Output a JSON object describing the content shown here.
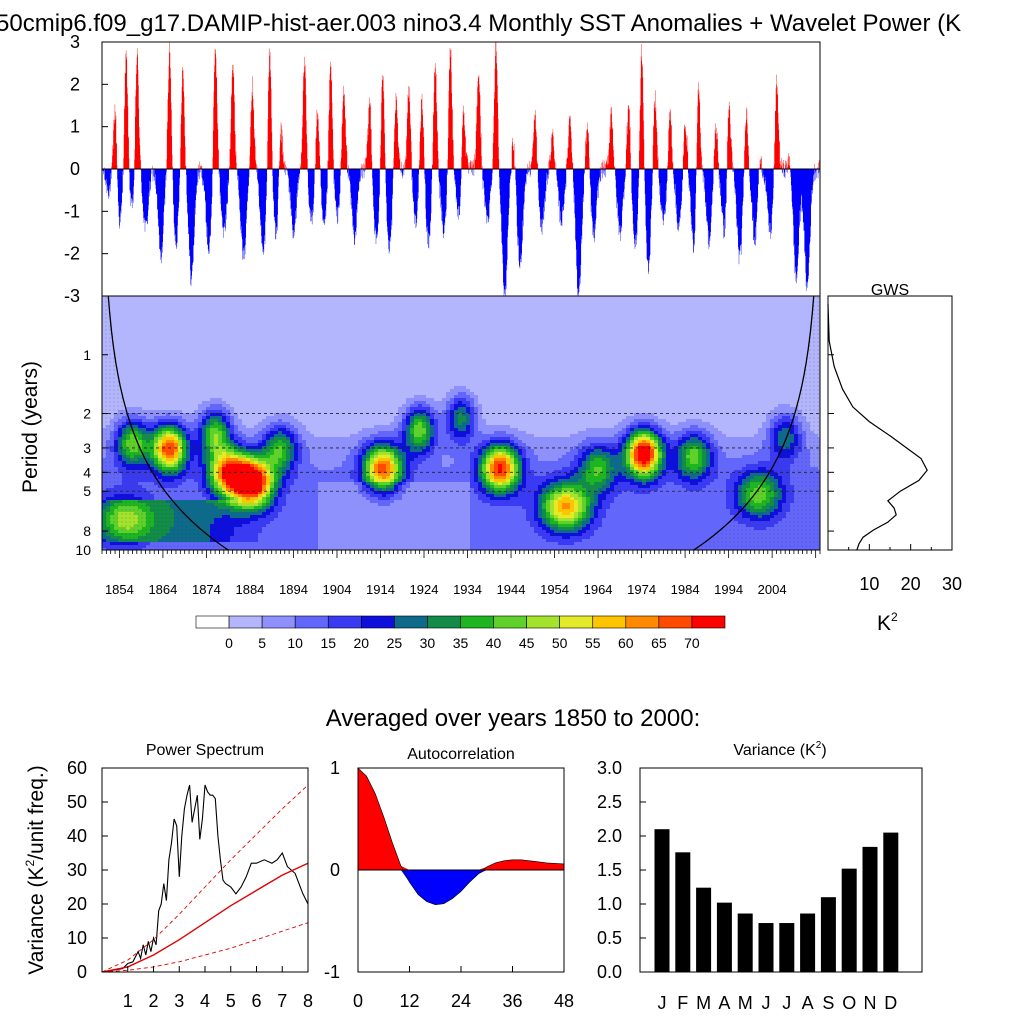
{
  "main_title": "50cmip6.f09_g17.DAMIP-hist-aer.003 nino3.4 Monthly SST Anomalies + Wavelet Power (K",
  "chart_data": [
    {
      "type": "bar",
      "name": "timeseries",
      "ylim": [
        -3,
        3
      ],
      "yticks": [
        "3",
        "2",
        "1",
        "0",
        "-1",
        "-2",
        "-3"
      ],
      "xlim": [
        1850,
        2015
      ],
      "colors": {
        "positive": "#ff0000",
        "negative": "#0000ff"
      },
      "approx_events": [
        {
          "year": 1853,
          "value": 1.8
        },
        {
          "year": 1855.5,
          "value": 2.8
        },
        {
          "year": 1858,
          "value": 3.0
        },
        {
          "year": 1865.5,
          "value": 2.9
        },
        {
          "year": 1868.5,
          "value": 2.5
        },
        {
          "year": 1876,
          "value": 3.0
        },
        {
          "year": 1880,
          "value": 2.5
        },
        {
          "year": 1884.5,
          "value": 2.0
        },
        {
          "year": 1888.5,
          "value": 3.0
        },
        {
          "year": 1891,
          "value": 1.3
        },
        {
          "year": 1896.5,
          "value": 2.6
        },
        {
          "year": 1899.5,
          "value": 1.5
        },
        {
          "year": 1902.5,
          "value": 2.6
        },
        {
          "year": 1905.5,
          "value": 1.9
        },
        {
          "year": 1911.5,
          "value": 1.7
        },
        {
          "year": 1914.5,
          "value": 2.5
        },
        {
          "year": 1917.5,
          "value": 1.7
        },
        {
          "year": 1920.5,
          "value": 2.0
        },
        {
          "year": 1923.5,
          "value": 1.8
        },
        {
          "year": 1926.5,
          "value": 2.6
        },
        {
          "year": 1930,
          "value": 3.0
        },
        {
          "year": 1933,
          "value": 1.7
        },
        {
          "year": 1936.5,
          "value": 2.3
        },
        {
          "year": 1940.5,
          "value": 3.0
        },
        {
          "year": 1944.5,
          "value": 0.7
        },
        {
          "year": 1949.5,
          "value": 1.3
        },
        {
          "year": 1953.5,
          "value": 0.8
        },
        {
          "year": 1957.5,
          "value": 1.3
        },
        {
          "year": 1961.5,
          "value": 1.1
        },
        {
          "year": 1967,
          "value": 1.4
        },
        {
          "year": 1971,
          "value": 1.6
        },
        {
          "year": 1974,
          "value": 3.0
        },
        {
          "year": 1977,
          "value": 1.8
        },
        {
          "year": 1980.5,
          "value": 1.4
        },
        {
          "year": 1984,
          "value": 1.2
        },
        {
          "year": 1987,
          "value": 2.4
        },
        {
          "year": 1991,
          "value": 1.1
        },
        {
          "year": 1994,
          "value": 1.9
        },
        {
          "year": 1998,
          "value": 1.5
        },
        {
          "year": 2001,
          "value": 0.5
        },
        {
          "year": 2005,
          "value": 2.1
        },
        {
          "year": 2008,
          "value": 0.3
        },
        {
          "year": 1851.5,
          "value": -0.5
        },
        {
          "year": 1854,
          "value": -1.3
        },
        {
          "year": 1857,
          "value": -1.0
        },
        {
          "year": 1860,
          "value": -1.4
        },
        {
          "year": 1863.5,
          "value": -2.1
        },
        {
          "year": 1867,
          "value": -1.7
        },
        {
          "year": 1870.5,
          "value": -2.6
        },
        {
          "year": 1874.5,
          "value": -1.9
        },
        {
          "year": 1878,
          "value": -1.5
        },
        {
          "year": 1882.5,
          "value": -2.1
        },
        {
          "year": 1887,
          "value": -2.0
        },
        {
          "year": 1890,
          "value": -1.6
        },
        {
          "year": 1894,
          "value": -1.5
        },
        {
          "year": 1898,
          "value": -1.2
        },
        {
          "year": 1901,
          "value": -1.4
        },
        {
          "year": 1904,
          "value": -1.1
        },
        {
          "year": 1908,
          "value": -1.6
        },
        {
          "year": 1913,
          "value": -1.7
        },
        {
          "year": 1916,
          "value": -1.9
        },
        {
          "year": 1922,
          "value": -1.2
        },
        {
          "year": 1925,
          "value": -1.7
        },
        {
          "year": 1928.5,
          "value": -1.5
        },
        {
          "year": 1932,
          "value": -1.1
        },
        {
          "year": 1938.5,
          "value": -1.2
        },
        {
          "year": 1942.5,
          "value": -3.0
        },
        {
          "year": 1946,
          "value": -2.3
        },
        {
          "year": 1951,
          "value": -1.4
        },
        {
          "year": 1955.5,
          "value": -1.2
        },
        {
          "year": 1959.5,
          "value": -3.0
        },
        {
          "year": 1963,
          "value": -1.6
        },
        {
          "year": 1969,
          "value": -1.5
        },
        {
          "year": 1972.5,
          "value": -1.8
        },
        {
          "year": 1975.5,
          "value": -2.3
        },
        {
          "year": 1979,
          "value": -1.2
        },
        {
          "year": 1982.5,
          "value": -1.4
        },
        {
          "year": 1986,
          "value": -1.9
        },
        {
          "year": 1989.5,
          "value": -1.7
        },
        {
          "year": 1993,
          "value": -1.5
        },
        {
          "year": 1996.5,
          "value": -2.1
        },
        {
          "year": 2000,
          "value": -1.7
        },
        {
          "year": 2003.5,
          "value": -1.5
        },
        {
          "year": 2009.5,
          "value": -2.6
        },
        {
          "year": 2012,
          "value": -2.8
        }
      ]
    },
    {
      "type": "heatmap",
      "name": "wavelet_power",
      "ylabel": "Period (years)",
      "ylim": [
        0.5,
        10
      ],
      "y_log_scale": true,
      "yticks": [
        1,
        2,
        3,
        4,
        5,
        8,
        10
      ],
      "xlim": [
        1850,
        2015
      ],
      "xticks": [
        "1854",
        "1864",
        "1874",
        "1884",
        "1894",
        "1904",
        "1914",
        "1924",
        "1934",
        "1944",
        "1954",
        "1964",
        "1974",
        "1984",
        "1994",
        "2004"
      ],
      "dashed_reference_periods": [
        2,
        3,
        4,
        5
      ],
      "contour_levels": [
        "0",
        "5",
        "10",
        "15",
        "20",
        "25",
        "30",
        "35",
        "40",
        "45",
        "50",
        "55",
        "60",
        "65",
        "70"
      ],
      "palette": [
        "#ffffff",
        "#b3b6fc",
        "#8e90fb",
        "#6366fa",
        "#3a3af2",
        "#0f0fdc",
        "#0d6a8a",
        "#128c48",
        "#1db522",
        "#5fd12a",
        "#a4e32c",
        "#e3ea2a",
        "#ffc400",
        "#ff8a00",
        "#ff4a00",
        "#ff0000"
      ],
      "approx_power_peaks": [
        {
          "year": 1865.5,
          "period": 3.0,
          "power": 63
        },
        {
          "year": 1884.5,
          "period": 4.5,
          "power": 72
        },
        {
          "year": 1879,
          "period": 4.0,
          "power": 52
        },
        {
          "year": 1876,
          "period": 2.5,
          "power": 38
        },
        {
          "year": 1857,
          "period": 2.8,
          "power": 38
        },
        {
          "year": 1891,
          "period": 3.0,
          "power": 32
        },
        {
          "year": 1855,
          "period": 7.0,
          "power": 30
        },
        {
          "year": 1914.5,
          "period": 3.8,
          "power": 58
        },
        {
          "year": 1923,
          "period": 2.4,
          "power": 40
        },
        {
          "year": 1932.5,
          "period": 2.1,
          "power": 30
        },
        {
          "year": 1941.5,
          "period": 3.8,
          "power": 62
        },
        {
          "year": 1956.5,
          "period": 6.0,
          "power": 50
        },
        {
          "year": 1964,
          "period": 3.8,
          "power": 30
        },
        {
          "year": 1974.5,
          "period": 3.2,
          "power": 72
        },
        {
          "year": 1986,
          "period": 3.3,
          "power": 35
        },
        {
          "year": 2001,
          "period": 5.2,
          "power": 33
        },
        {
          "year": 2007,
          "period": 2.6,
          "power": 25
        }
      ]
    },
    {
      "type": "line",
      "name": "global_wavelet_spectrum",
      "title": "GWS",
      "xlabel": "K",
      "xlabel_superscript": "2",
      "xticks": [
        "10",
        "20",
        "30"
      ],
      "xlim": [
        0,
        30
      ],
      "y_log_scale": true,
      "points": [
        {
          "period": 0.55,
          "power": 0.0
        },
        {
          "period": 0.85,
          "power": 0.3
        },
        {
          "period": 1.15,
          "power": 1.5
        },
        {
          "period": 1.5,
          "power": 3.5
        },
        {
          "period": 1.85,
          "power": 6.0
        },
        {
          "period": 2.2,
          "power": 10.0
        },
        {
          "period": 2.6,
          "power": 15.0
        },
        {
          "period": 3.0,
          "power": 19.0
        },
        {
          "period": 3.4,
          "power": 22.5
        },
        {
          "period": 3.9,
          "power": 24.0
        },
        {
          "period": 4.4,
          "power": 22.0
        },
        {
          "period": 5.0,
          "power": 17.5
        },
        {
          "period": 5.6,
          "power": 14.5
        },
        {
          "period": 6.1,
          "power": 16.0
        },
        {
          "period": 6.6,
          "power": 16.5
        },
        {
          "period": 7.2,
          "power": 14.5
        },
        {
          "period": 7.9,
          "power": 11.0
        },
        {
          "period": 8.6,
          "power": 8.5
        },
        {
          "period": 9.3,
          "power": 7.5
        },
        {
          "period": 10.0,
          "power": 7.0
        }
      ]
    },
    {
      "type": "line",
      "name": "power_spectrum",
      "title": "Power Spectrum",
      "ylabel": "Variance (K",
      "ylabel_superscript": "2",
      "ylabel_suffix": "/unit freq.)",
      "xlim": [
        0,
        8
      ],
      "ylim": [
        0,
        60
      ],
      "xticks": [
        "1",
        "2",
        "3",
        "4",
        "5",
        "6",
        "7",
        "8"
      ],
      "yticks": [
        "0",
        "10",
        "20",
        "30",
        "40",
        "50",
        "60"
      ],
      "series": [
        {
          "style": "black",
          "x": [
            0,
            0.4,
            0.8,
            1.0,
            1.2,
            1.4,
            1.5,
            1.6,
            1.7,
            1.8,
            1.9,
            2.0,
            2.1,
            2.2,
            2.3,
            2.4,
            2.5,
            2.6,
            2.7,
            2.8,
            2.9,
            3.0,
            3.1,
            3.2,
            3.3,
            3.4,
            3.5,
            3.6,
            3.7,
            3.8,
            3.9,
            4.0,
            4.1,
            4.2,
            4.3,
            4.4,
            4.5,
            4.6,
            4.7,
            4.8,
            5.0,
            5.2,
            5.4,
            5.6,
            5.8,
            6.0,
            6.3,
            6.6,
            6.8,
            7.0,
            7.2,
            7.5,
            7.8,
            8.0
          ],
          "y": [
            0,
            0.5,
            1.0,
            2.5,
            3,
            6,
            4,
            8,
            5,
            9,
            6,
            10,
            8,
            18,
            20,
            26,
            21,
            33,
            38,
            45,
            43,
            28,
            40,
            48,
            52,
            55,
            44,
            48,
            52,
            39,
            45,
            55,
            53,
            52,
            52,
            51,
            40,
            33,
            27,
            26,
            25,
            23,
            25,
            28,
            32,
            32,
            33,
            32,
            33,
            35,
            31,
            29,
            23,
            20
          ]
        },
        {
          "style": "red-solid",
          "x": [
            0,
            1,
            2,
            3,
            4,
            5,
            6,
            7,
            8
          ],
          "y": [
            0,
            1.5,
            5,
            9.5,
            14.5,
            19.5,
            24,
            28.5,
            32
          ]
        },
        {
          "style": "red-dashed-upper",
          "x": [
            0,
            1,
            2,
            3,
            4,
            5,
            6,
            7,
            8
          ],
          "y": [
            0,
            3.5,
            9.5,
            17,
            25,
            33,
            40.5,
            48,
            55
          ]
        },
        {
          "style": "red-dashed-lower",
          "x": [
            0,
            1,
            2,
            3,
            4,
            5,
            6,
            7,
            8
          ],
          "y": [
            0,
            0.5,
            1.5,
            3,
            5,
            7,
            9.5,
            12,
            14.5
          ]
        }
      ]
    },
    {
      "type": "area",
      "name": "autocorrelation",
      "title": "Autocorrelation",
      "xlim": [
        0,
        48
      ],
      "ylim": [
        -1,
        1
      ],
      "xticks": [
        "0",
        "12",
        "24",
        "36",
        "48"
      ],
      "yticks": [
        "1",
        "0",
        "-1"
      ],
      "colors": {
        "positive": "#ff0000",
        "negative": "#0000ff"
      },
      "lags": [
        0,
        2,
        4,
        6,
        8,
        10,
        12,
        14,
        16,
        18,
        20,
        22,
        24,
        26,
        28,
        30,
        32,
        34,
        36,
        38,
        40,
        42,
        44,
        46,
        48
      ],
      "values": [
        1.0,
        0.92,
        0.75,
        0.52,
        0.27,
        0.04,
        -0.12,
        -0.24,
        -0.31,
        -0.34,
        -0.33,
        -0.28,
        -0.21,
        -0.12,
        -0.04,
        0.03,
        0.07,
        0.09,
        0.1,
        0.1,
        0.09,
        0.08,
        0.07,
        0.065,
        0.06
      ]
    },
    {
      "type": "bar",
      "name": "monthly_variance",
      "title": "Variance (K",
      "title_superscript": "2",
      "title_suffix": ")",
      "categories": [
        "J",
        "F",
        "M",
        "A",
        "M",
        "J",
        "J",
        "A",
        "S",
        "O",
        "N",
        "D"
      ],
      "values": [
        2.1,
        1.76,
        1.24,
        1.02,
        0.86,
        0.72,
        0.72,
        0.86,
        1.1,
        1.52,
        1.84,
        2.05
      ],
      "ylim": [
        0,
        3.0
      ],
      "yticks": [
        "0.0",
        "0.5",
        "1.0",
        "1.5",
        "2.0",
        "2.5",
        "3.0"
      ],
      "color": "#000000"
    }
  ],
  "gws_title": "GWS",
  "gws_unit": "K",
  "gws_unit_sup": "2",
  "averaged_title": "Averaged over years 1850 to 2000:",
  "ps_title": "Power Spectrum",
  "ac_title": "Autocorrelation",
  "var_title": "Variance (K",
  "var_title_sup": "2",
  "var_title_end": ")",
  "period_ylabel": "Period (years)",
  "ps_ylabel_a": "Variance (K",
  "ps_ylabel_sup": "2",
  "ps_ylabel_b": "/unit freq.)"
}
